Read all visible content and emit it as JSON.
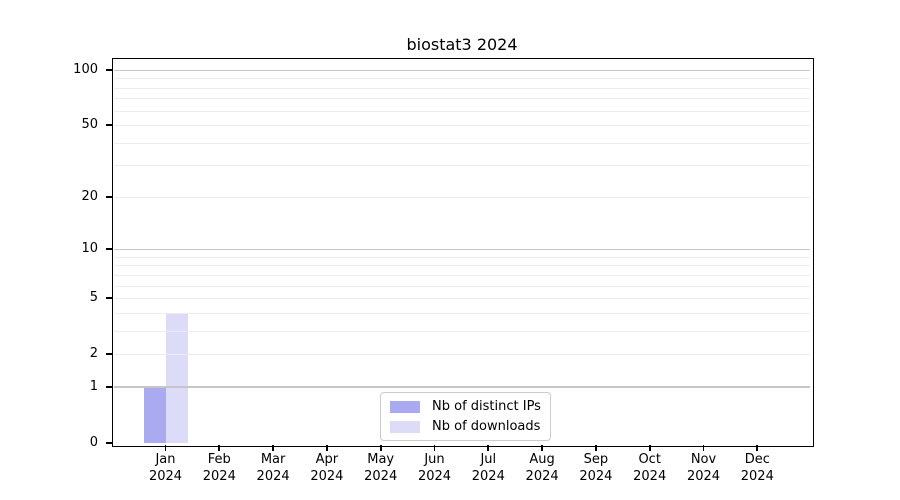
{
  "chart_data": {
    "type": "bar",
    "title": "biostat3 2024",
    "x_axis": {
      "months": [
        "Jan",
        "Feb",
        "Mar",
        "Apr",
        "May",
        "Jun",
        "Jul",
        "Aug",
        "Sep",
        "Oct",
        "Nov",
        "Dec"
      ],
      "year": "2024"
    },
    "y_axis": {
      "scale": "log10(1+x)",
      "tick_labels": [
        "0",
        "1",
        "2",
        "5",
        "10",
        "20",
        "50",
        "100"
      ],
      "tick_values": [
        0,
        1,
        2,
        5,
        10,
        20,
        50,
        100
      ],
      "major_gridlines": [
        1,
        10,
        100
      ],
      "minor_gridlines": [
        2,
        3,
        4,
        5,
        6,
        7,
        8,
        9,
        20,
        30,
        40,
        50,
        60,
        70,
        80,
        90
      ],
      "ylim": [
        0,
        115
      ]
    },
    "series": [
      {
        "name": "Nb of distinct IPs",
        "color": "#aaaaf0",
        "values": [
          1,
          0,
          0,
          0,
          0,
          0,
          0,
          0,
          0,
          0,
          0,
          0
        ]
      },
      {
        "name": "Nb of downloads",
        "color": "#dcdcf8",
        "values": [
          4,
          0,
          0,
          0,
          0,
          0,
          0,
          0,
          0,
          0,
          0,
          0
        ]
      }
    ],
    "legend": {
      "position": "bottom-center"
    },
    "colors": {
      "background": "#ffffff",
      "spine": "#000000",
      "text": "#000000",
      "major_grid": "#c6c6c6",
      "minor_grid": "#ececec",
      "legend_border": "#cccccc"
    }
  }
}
